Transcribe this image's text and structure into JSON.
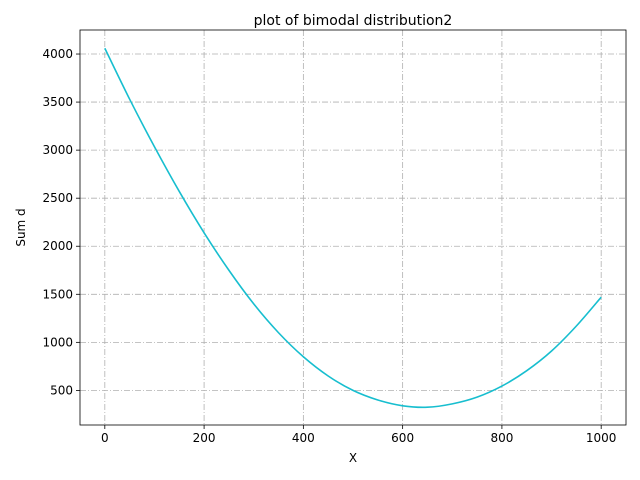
{
  "chart_data": {
    "type": "line",
    "title": "plot of bimodal distribution2",
    "xlabel": "X",
    "ylabel": "Sum d",
    "xlim": [
      -50,
      1050
    ],
    "ylim": [
      140,
      4250
    ],
    "xticks": [
      0,
      200,
      400,
      600,
      800,
      1000
    ],
    "yticks": [
      500,
      1000,
      1500,
      2000,
      2500,
      3000,
      3500,
      4000
    ],
    "grid": true,
    "grid_style": "dash-dot",
    "line_color": "#17becf",
    "series": [
      {
        "x": [
          0,
          50,
          100,
          150,
          200,
          250,
          300,
          350,
          400,
          450,
          500,
          550,
          600,
          650,
          700,
          750,
          800,
          850,
          900,
          950,
          1000
        ],
        "y": [
          4060,
          3530,
          3035,
          2570,
          2140,
          1750,
          1400,
          1100,
          850,
          650,
          500,
          400,
          340,
          325,
          360,
          430,
          545,
          705,
          910,
          1170,
          1470
        ]
      }
    ]
  }
}
